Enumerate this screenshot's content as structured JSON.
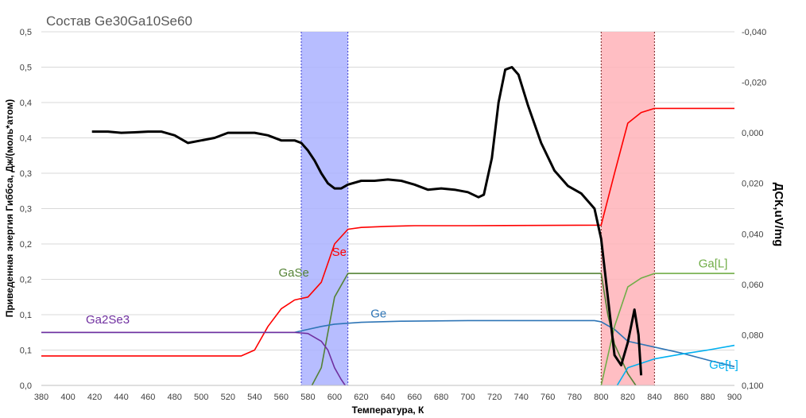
{
  "chart_data": {
    "type": "line",
    "title": "Состав Ge30Ga10Se60",
    "xlabel": "Температура, К",
    "ylabel": "Приведенная энергия Гиббса, Дж/(моль*атом)",
    "y2label": "ДСК,uV/mg",
    "xlim": [
      380,
      900
    ],
    "ylim": [
      0,
      0.6
    ],
    "y2lim": [
      -0.04,
      0.1
    ],
    "y2_reversed": true,
    "grid": "horizontal",
    "x_ticks": [
      "380",
      "400",
      "420",
      "440",
      "460",
      "480",
      "500",
      "520",
      "540",
      "560",
      "580",
      "600",
      "620",
      "640",
      "660",
      "680",
      "700",
      "720",
      "740",
      "760",
      "780",
      "800",
      "820",
      "840",
      "860",
      "880",
      "900"
    ],
    "y_ticks": [
      "0,0",
      "0,1",
      "0,1",
      "0,2",
      "0,2",
      "0,3",
      "0,3",
      "0,4",
      "0,4",
      "0,5",
      "0,5"
    ],
    "y2_ticks": [
      "-0,040",
      "-0,020",
      "0,000",
      "0,020",
      "0,040",
      "0,060",
      "0,080",
      "0,100"
    ],
    "colors": {
      "Se": "#ff0000",
      "GaSe": "#548235",
      "Ge": "#2e75b6",
      "Ga2Se3": "#7030a0",
      "Ga[L]": "#70ad47",
      "Ge[L]": "#00b0f0",
      "DSC": "#000000",
      "band1": "#aab2ff",
      "band2": "#ffb3b8"
    },
    "bands": [
      {
        "from": 575,
        "to": 610,
        "color": "#aab2ff"
      },
      {
        "from": 800,
        "to": 840,
        "color": "#ffb3b8"
      }
    ],
    "series": [
      {
        "name": "Se",
        "color": "#ff0000",
        "axis": "left",
        "points": [
          [
            380,
            0.05
          ],
          [
            530,
            0.05
          ],
          [
            540,
            0.06
          ],
          [
            550,
            0.1
          ],
          [
            560,
            0.13
          ],
          [
            570,
            0.145
          ],
          [
            580,
            0.15
          ],
          [
            590,
            0.175
          ],
          [
            600,
            0.24
          ],
          [
            610,
            0.265
          ],
          [
            620,
            0.268
          ],
          [
            640,
            0.27
          ],
          [
            660,
            0.271
          ],
          [
            700,
            0.271
          ],
          [
            800,
            0.272
          ],
          [
            810,
            0.36
          ],
          [
            820,
            0.445
          ],
          [
            830,
            0.463
          ],
          [
            840,
            0.47
          ],
          [
            900,
            0.47
          ]
        ]
      },
      {
        "name": "GaSe",
        "color": "#548235",
        "axis": "left",
        "points": [
          [
            583,
            0
          ],
          [
            590,
            0.03
          ],
          [
            600,
            0.15
          ],
          [
            610,
            0.19
          ],
          [
            800,
            0.19
          ],
          [
            805,
            0.12
          ],
          [
            810,
            0.07
          ],
          [
            820,
            0.02
          ],
          [
            826,
            0
          ]
        ]
      },
      {
        "name": "Ge",
        "color": "#2e75b6",
        "axis": "left",
        "points": [
          [
            380,
            0.09
          ],
          [
            570,
            0.09
          ],
          [
            580,
            0.095
          ],
          [
            590,
            0.1
          ],
          [
            600,
            0.104
          ],
          [
            620,
            0.107
          ],
          [
            650,
            0.109
          ],
          [
            700,
            0.11
          ],
          [
            795,
            0.11
          ],
          [
            800,
            0.108
          ],
          [
            810,
            0.095
          ],
          [
            820,
            0.075
          ],
          [
            840,
            0.065
          ],
          [
            860,
            0.055
          ],
          [
            880,
            0.043
          ],
          [
            900,
            0.032
          ]
        ]
      },
      {
        "name": "Ga2Se3",
        "color": "#7030a0",
        "axis": "left",
        "points": [
          [
            380,
            0.09
          ],
          [
            570,
            0.09
          ],
          [
            580,
            0.088
          ],
          [
            590,
            0.075
          ],
          [
            595,
            0.06
          ],
          [
            600,
            0.03
          ],
          [
            605,
            0.01
          ],
          [
            608,
            0
          ]
        ]
      },
      {
        "name": "Ga[L]",
        "color": "#70ad47",
        "axis": "left",
        "points": [
          [
            800,
            0
          ],
          [
            810,
            0.1
          ],
          [
            820,
            0.167
          ],
          [
            830,
            0.182
          ],
          [
            840,
            0.19
          ],
          [
            900,
            0.19
          ]
        ]
      },
      {
        "name": "Ge[L]",
        "color": "#00b0f0",
        "axis": "left",
        "points": [
          [
            812,
            0
          ],
          [
            820,
            0.03
          ],
          [
            840,
            0.045
          ],
          [
            860,
            0.053
          ],
          [
            880,
            0.06
          ],
          [
            900,
            0.068
          ]
        ]
      },
      {
        "name": "",
        "color": "#000000",
        "axis": "right",
        "points": [
          [
            418,
            -0.0005
          ],
          [
            430,
            -0.0005
          ],
          [
            440,
            0.0
          ],
          [
            450,
            -0.0002
          ],
          [
            460,
            -0.0005
          ],
          [
            470,
            -0.0005
          ],
          [
            480,
            0.001
          ],
          [
            490,
            0.004
          ],
          [
            500,
            0.003
          ],
          [
            510,
            0.002
          ],
          [
            520,
            0.0
          ],
          [
            530,
            0.0
          ],
          [
            540,
            0.0
          ],
          [
            550,
            0.001
          ],
          [
            560,
            0.003
          ],
          [
            570,
            0.003
          ],
          [
            575,
            0.004
          ],
          [
            580,
            0.007
          ],
          [
            585,
            0.011
          ],
          [
            590,
            0.016
          ],
          [
            595,
            0.02
          ],
          [
            600,
            0.022
          ],
          [
            605,
            0.022
          ],
          [
            610,
            0.0205
          ],
          [
            620,
            0.019
          ],
          [
            630,
            0.019
          ],
          [
            640,
            0.0185
          ],
          [
            650,
            0.019
          ],
          [
            660,
            0.0205
          ],
          [
            670,
            0.0225
          ],
          [
            680,
            0.022
          ],
          [
            690,
            0.0225
          ],
          [
            700,
            0.0235
          ],
          [
            708,
            0.0255
          ],
          [
            712,
            0.0245
          ],
          [
            718,
            0.01
          ],
          [
            723,
            -0.012
          ],
          [
            728,
            -0.025
          ],
          [
            733,
            -0.026
          ],
          [
            738,
            -0.023
          ],
          [
            745,
            -0.011
          ],
          [
            755,
            0.004
          ],
          [
            765,
            0.015
          ],
          [
            775,
            0.021
          ],
          [
            785,
            0.024
          ],
          [
            795,
            0.03
          ],
          [
            800,
            0.042
          ],
          [
            805,
            0.065
          ],
          [
            810,
            0.088
          ],
          [
            815,
            0.092
          ],
          [
            820,
            0.083
          ],
          [
            825,
            0.07
          ],
          [
            828,
            0.08
          ],
          [
            830,
            0.096
          ]
        ]
      }
    ],
    "labels": [
      {
        "text": "Se",
        "series": "Se",
        "at": [
          598,
          0.22
        ],
        "color": "#ff0000"
      },
      {
        "text": "GaSe",
        "series": "GaSe",
        "at": [
          558,
          0.185
        ],
        "color": "#548235"
      },
      {
        "text": "Ge",
        "series": "Ge",
        "at": [
          627,
          0.115
        ],
        "color": "#2e75b6"
      },
      {
        "text": "Ga2Se3",
        "series": "Ga2Se3",
        "at": [
          108,
          0.105
        ],
        "color": "#7030a0"
      },
      {
        "text": "Ga[L]",
        "series": "Ga[L]",
        "at": [
          873,
          0.2
        ],
        "color": "#70ad47"
      },
      {
        "text": "Ge[L]",
        "series": "Ge[L]",
        "at": [
          881,
          0.028
        ],
        "color": "#00b0f0"
      }
    ]
  }
}
